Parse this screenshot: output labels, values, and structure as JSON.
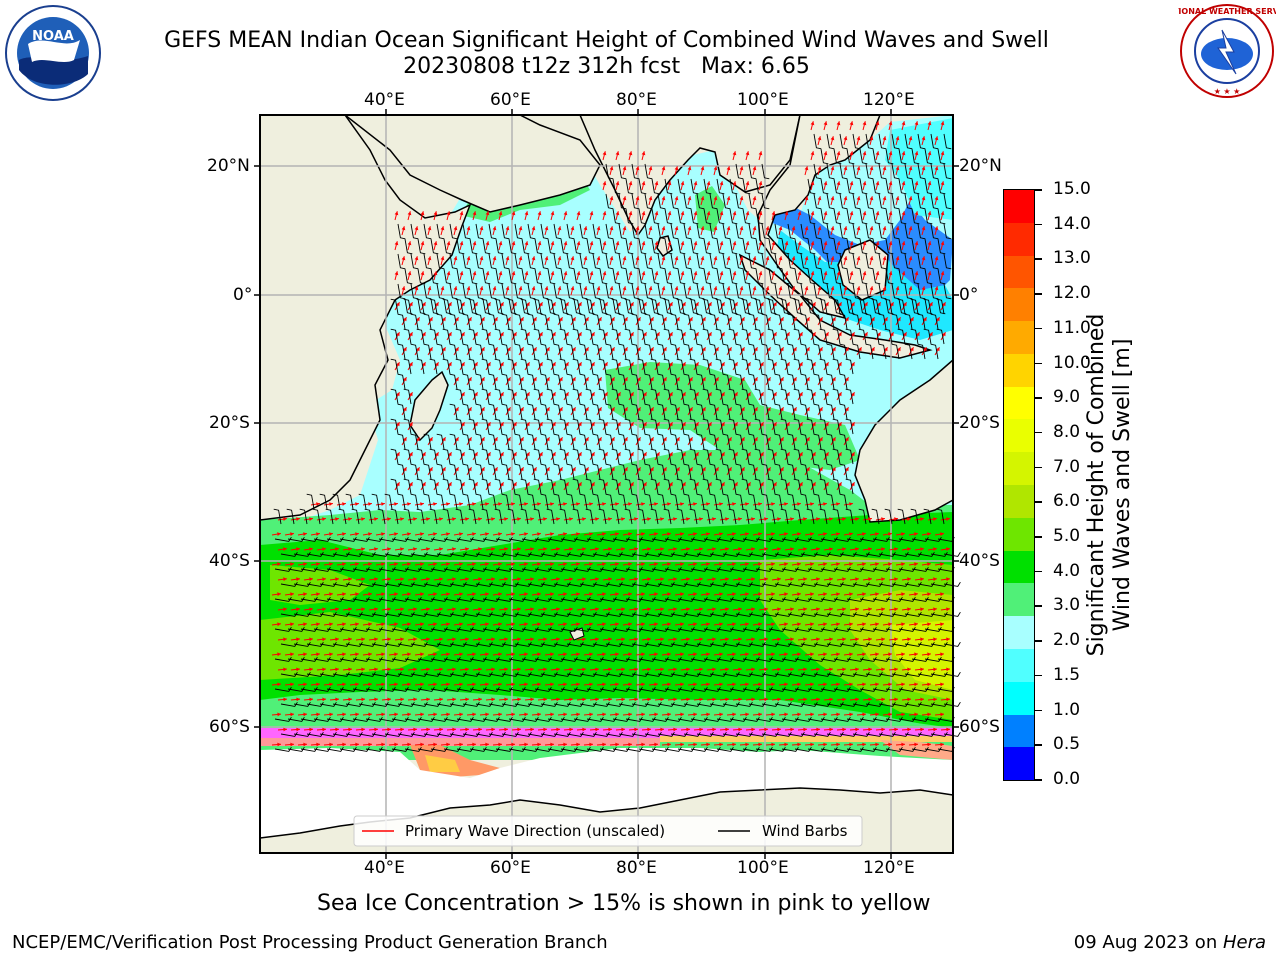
{
  "header": {
    "title_line1": "GEFS MEAN Indian Ocean Significant Height of Combined Wind Waves and Swell",
    "title_line2": "20230808 t12z 312h fcst   Max: 6.65",
    "logo_left_text": "NOAA",
    "logo_right_text": "NATIONAL WEATHER SERVICE"
  },
  "map": {
    "top_lon_labels": [
      "40°E",
      "60°E",
      "80°E",
      "100°E",
      "120°E"
    ],
    "bottom_lon_labels": [
      "40°E",
      "60°E",
      "80°E",
      "100°E",
      "120°E"
    ],
    "left_lat_labels": [
      "20°N",
      "0°",
      "20°S",
      "40°S",
      "60°S"
    ],
    "right_lat_labels": [
      "20°N",
      "0°",
      "20°S",
      "40°S",
      "60°S"
    ],
    "legend": {
      "wave_dir_label": "Primary Wave Direction (unscaled)",
      "wind_barb_label": "Wind Barbs",
      "wave_color": "#ff0000",
      "barb_color": "#000000"
    },
    "land_color": "#efefde",
    "ice_note": "Sea Ice Concentration > 15% is shown in pink to yellow"
  },
  "colorbar": {
    "label_line1": "Significant Height of Combined",
    "label_line2": "Wind Waves and Swell [m]",
    "ticks": [
      "15.0",
      "14.0",
      "13.0",
      "12.0",
      "11.0",
      "10.0",
      "9.0",
      "8.0",
      "7.0",
      "6.0",
      "5.0",
      "4.0",
      "3.0",
      "2.0",
      "1.5",
      "1.0",
      "0.5",
      "0.0"
    ],
    "colors_top_to_bottom": [
      "#ff0000",
      "#ff2a00",
      "#ff5500",
      "#ff8000",
      "#ffaa00",
      "#ffd400",
      "#ffff00",
      "#eaff00",
      "#d4f500",
      "#b0e600",
      "#6ee600",
      "#00e000",
      "#50f078",
      "#a8ffff",
      "#50ffff",
      "#00ffff",
      "#0080ff",
      "#0000ff"
    ]
  },
  "footer": {
    "left": "NCEP/EMC/Verification Post Processing Product Generation Branch",
    "right_prefix": "09 Aug 2023 on ",
    "right_italic": "Hera"
  }
}
